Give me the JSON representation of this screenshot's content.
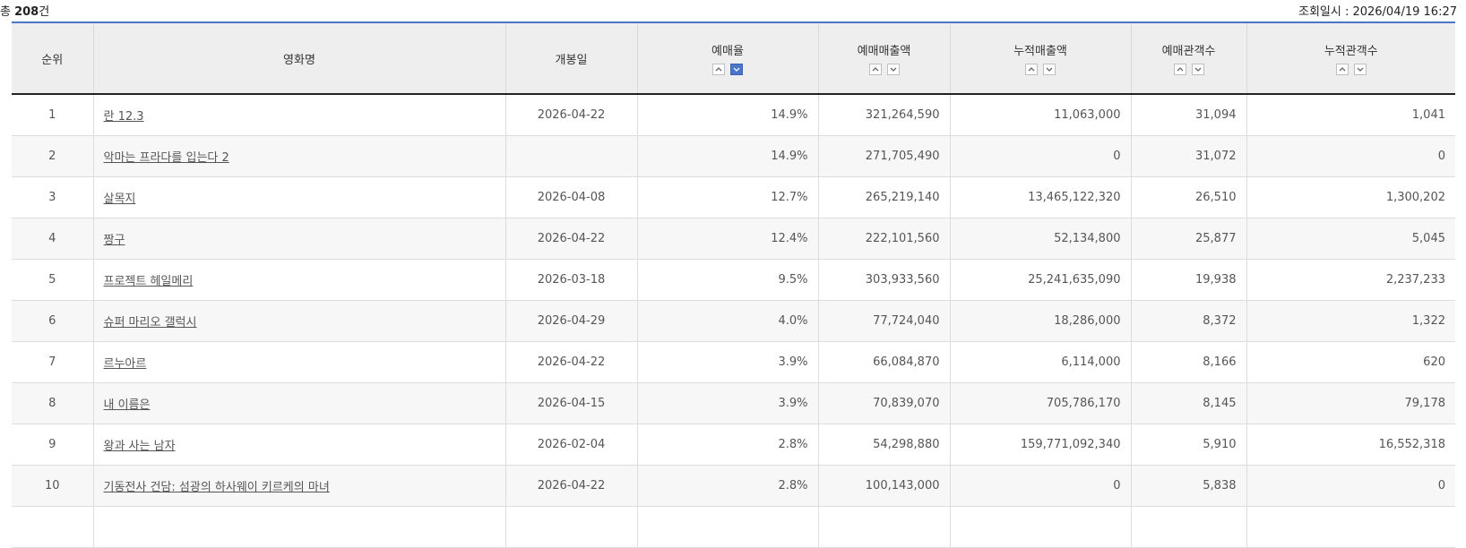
{
  "summary": {
    "total_prefix": "총 ",
    "total_count": "208",
    "total_suffix": "건",
    "time_label": "조회일시 : 2026/04/19 16:27"
  },
  "columns": [
    {
      "label": "순위",
      "sortable": false
    },
    {
      "label": "영화명",
      "sortable": false
    },
    {
      "label": "개봉일",
      "sortable": false
    },
    {
      "label": "예매율",
      "sortable": true,
      "active": "desc"
    },
    {
      "label": "예매매출액",
      "sortable": true,
      "active": ""
    },
    {
      "label": "누적매출액",
      "sortable": true,
      "active": ""
    },
    {
      "label": "예매관객수",
      "sortable": true,
      "active": ""
    },
    {
      "label": "누적관객수",
      "sortable": true,
      "active": ""
    }
  ],
  "rows": [
    {
      "rank": "1",
      "title": "란 12.3",
      "release": "2026-04-22",
      "rate": "14.9%",
      "sales": "321,264,590",
      "cum_sales": "11,063,000",
      "audience": "31,094",
      "cum_audience": "1,041"
    },
    {
      "rank": "2",
      "title": "악마는 프라다를 입는다 2",
      "release": "",
      "rate": "14.9%",
      "sales": "271,705,490",
      "cum_sales": "0",
      "audience": "31,072",
      "cum_audience": "0"
    },
    {
      "rank": "3",
      "title": "살목지",
      "release": "2026-04-08",
      "rate": "12.7%",
      "sales": "265,219,140",
      "cum_sales": "13,465,122,320",
      "audience": "26,510",
      "cum_audience": "1,300,202"
    },
    {
      "rank": "4",
      "title": "짱구",
      "release": "2026-04-22",
      "rate": "12.4%",
      "sales": "222,101,560",
      "cum_sales": "52,134,800",
      "audience": "25,877",
      "cum_audience": "5,045"
    },
    {
      "rank": "5",
      "title": "프로젝트 헤일메리",
      "release": "2026-03-18",
      "rate": "9.5%",
      "sales": "303,933,560",
      "cum_sales": "25,241,635,090",
      "audience": "19,938",
      "cum_audience": "2,237,233"
    },
    {
      "rank": "6",
      "title": "슈퍼 마리오 갤럭시",
      "release": "2026-04-29",
      "rate": "4.0%",
      "sales": "77,724,040",
      "cum_sales": "18,286,000",
      "audience": "8,372",
      "cum_audience": "1,322"
    },
    {
      "rank": "7",
      "title": "르누아르",
      "release": "2026-04-22",
      "rate": "3.9%",
      "sales": "66,084,870",
      "cum_sales": "6,114,000",
      "audience": "8,166",
      "cum_audience": "620"
    },
    {
      "rank": "8",
      "title": "내 이름은",
      "release": "2026-04-15",
      "rate": "3.9%",
      "sales": "70,839,070",
      "cum_sales": "705,786,170",
      "audience": "8,145",
      "cum_audience": "79,178"
    },
    {
      "rank": "9",
      "title": "왕과 사는 남자",
      "release": "2026-02-04",
      "rate": "2.8%",
      "sales": "54,298,880",
      "cum_sales": "159,771,092,340",
      "audience": "5,910",
      "cum_audience": "16,552,318"
    },
    {
      "rank": "10",
      "title": "기동전사 건담: 섬광의 하사웨이 키르케의 마녀",
      "release": "2026-04-22",
      "rate": "2.8%",
      "sales": "100,143,000",
      "cum_sales": "0",
      "audience": "5,838",
      "cum_audience": "0"
    },
    {
      "rank": "",
      "title": "",
      "release": "",
      "rate": "",
      "sales": "",
      "cum_sales": "",
      "audience": "",
      "cum_audience": ""
    }
  ],
  "colors": {
    "accent": "#4a75c9",
    "header_bg": "#eeeeee",
    "row_alt": "#f7f7f7"
  },
  "icons": {
    "sort_asc": "chevron-up-icon",
    "sort_desc": "chevron-down-icon"
  }
}
